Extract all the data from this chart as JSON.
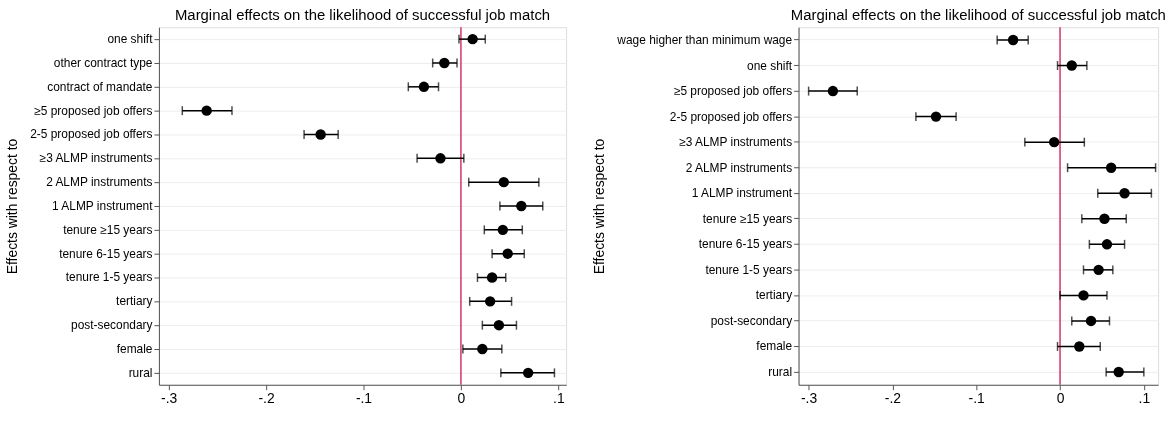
{
  "chart_data": [
    {
      "type": "scatter",
      "orientation": "horizontal",
      "title": "Marginal effects on the likelihood of successful job match",
      "ylabel": "Effects with respect to",
      "categories": [
        "one shift",
        "other contract type",
        "contract of mandate",
        "≥5 proposed job offers",
        "2-5 proposed job offers",
        "≥3 ALMP instruments",
        "2 ALMP instruments",
        "1 ALMP instrument",
        "tenure ≥15 years",
        "tenure 6-15 years",
        "tenure 1-5 years",
        "tertiary",
        "post-secondary",
        "female",
        "rural"
      ],
      "values": [
        0.012,
        -0.017,
        -0.038,
        -0.261,
        -0.144,
        -0.021,
        0.044,
        0.062,
        0.043,
        0.048,
        0.032,
        0.03,
        0.039,
        0.022,
        0.069
      ],
      "errors": [
        [
          -0.002,
          0.025
        ],
        [
          -0.029,
          -0.004
        ],
        [
          -0.054,
          -0.023
        ],
        [
          -0.286,
          -0.235
        ],
        [
          -0.161,
          -0.126
        ],
        [
          -0.045,
          0.003
        ],
        [
          0.008,
          0.08
        ],
        [
          0.04,
          0.084
        ],
        [
          0.024,
          0.063
        ],
        [
          0.032,
          0.065
        ],
        [
          0.017,
          0.046
        ],
        [
          0.009,
          0.052
        ],
        [
          0.022,
          0.057
        ],
        [
          0.002,
          0.042
        ],
        [
          0.041,
          0.096
        ]
      ],
      "color": "#000000",
      "marker": "circle",
      "xlim": [
        -0.31,
        0.108
      ],
      "xticks": [
        {
          "value": -0.3,
          "label": "-.3"
        },
        {
          "value": -0.2,
          "label": "-.2"
        },
        {
          "value": -0.1,
          "label": "-.1"
        },
        0,
        {
          "value": 0.1,
          "label": ".1"
        }
      ],
      "ref_lines": [
        {
          "axis": "x",
          "value": 0,
          "color": "#d6336c"
        }
      ],
      "grid": "y"
    },
    {
      "type": "scatter",
      "orientation": "horizontal",
      "title": "Marginal effects on the likelihood of successful job match",
      "ylabel": "Effects with respect to",
      "categories": [
        "wage higher than minimum wage",
        "one shift",
        "≥5 proposed job offers",
        "2-5 proposed job offers",
        "≥3 ALMP instruments",
        "2 ALMP instruments",
        "1 ALMP instrument",
        "tenure ≥15 years",
        "tenure 6-15 years",
        "tenure 1-5 years",
        "tertiary",
        "post-secondary",
        "female",
        "rural"
      ],
      "values": [
        -0.056,
        0.014,
        -0.271,
        -0.148,
        -0.007,
        0.061,
        0.077,
        0.053,
        0.056,
        0.046,
        0.028,
        0.037,
        0.023,
        0.07
      ],
      "errors": [
        [
          -0.075,
          -0.038
        ],
        [
          -0.003,
          0.032
        ],
        [
          -0.3,
          -0.242
        ],
        [
          -0.172,
          -0.124
        ],
        [
          -0.042,
          0.029
        ],
        [
          0.009,
          0.114
        ],
        [
          0.045,
          0.109
        ],
        [
          0.026,
          0.079
        ],
        [
          0.035,
          0.077
        ],
        [
          0.028,
          0.063
        ],
        [
          0.0,
          0.056
        ],
        [
          0.014,
          0.059
        ],
        [
          -0.003,
          0.048
        ],
        [
          0.055,
          0.1
        ]
      ],
      "color": "#000000",
      "marker": "circle",
      "xlim": [
        -0.312,
        0.117
      ],
      "xticks": [
        {
          "value": -0.3,
          "label": "-.3"
        },
        {
          "value": -0.2,
          "label": "-.2"
        },
        {
          "value": -0.1,
          "label": "-.1"
        },
        0,
        {
          "value": 0.1,
          "label": ".1"
        }
      ],
      "ref_lines": [
        {
          "axis": "x",
          "value": 0,
          "color": "#d6336c"
        }
      ],
      "grid": "y"
    }
  ]
}
